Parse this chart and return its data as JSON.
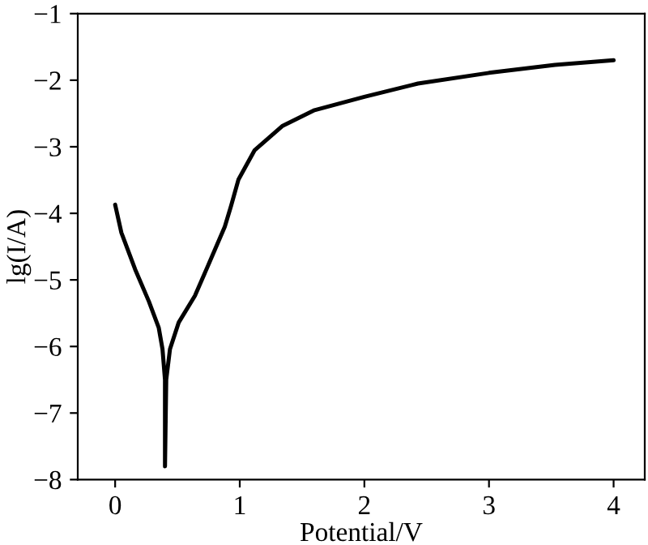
{
  "chart_data": {
    "type": "line",
    "xlabel": "Potential/V",
    "ylabel": "lg(I/A)",
    "series": [
      {
        "color": "#000000",
        "x": [
          0,
          0.05,
          0.16,
          0.27,
          0.35,
          0.38,
          0.4,
          0.4,
          0.41,
          0.44,
          0.51,
          0.64,
          0.77,
          0.88,
          0.93,
          0.99,
          1.12,
          1.34,
          1.6,
          2.0,
          2.43,
          3.0,
          3.53,
          4.0
        ],
        "values": [
          -3.87,
          -4.29,
          -4.84,
          -5.32,
          -5.72,
          -6.04,
          -6.5,
          -7.8,
          -6.5,
          -6.04,
          -5.64,
          -5.24,
          -4.68,
          -4.2,
          -3.89,
          -3.49,
          -3.05,
          -2.69,
          -2.45,
          -2.25,
          -2.05,
          -1.89,
          -1.77,
          -1.7
        ]
      }
    ],
    "xlim": [
      -0.3,
      4.25
    ],
    "ylim": [
      -8,
      -1
    ],
    "xticks": [
      0,
      1,
      2,
      3,
      4
    ],
    "yticks": [
      {
        "value": -8,
        "label": "−8"
      },
      {
        "value": -7,
        "label": "−7"
      },
      {
        "value": -6,
        "label": "−6"
      },
      {
        "value": -5,
        "label": "−5"
      },
      {
        "value": -4,
        "label": "−4"
      },
      {
        "value": -3,
        "label": "−3"
      },
      {
        "value": -2,
        "label": "−2"
      },
      {
        "value": -1,
        "label": "−1"
      }
    ],
    "grid": false,
    "legend": false,
    "marker": "none",
    "line_style": "solid"
  }
}
